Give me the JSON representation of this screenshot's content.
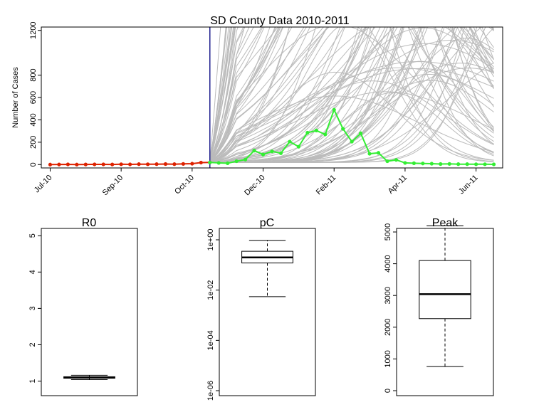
{
  "chart_data": [
    {
      "type": "line",
      "title": "SD County Data 2010-2011",
      "xlabel": "",
      "ylabel": "Number of Cases",
      "ylim": [
        -30,
        1230
      ],
      "y_ticks": [
        0,
        200,
        400,
        600,
        800,
        1200
      ],
      "x_tick_labels": [
        "Jul-10",
        "Sep-10",
        "Oct-10",
        "Dec-10",
        "Feb-11",
        "Apr-11",
        "Jun-11"
      ],
      "x_tick_weeks": [
        0,
        8,
        16,
        24,
        32,
        40,
        48
      ],
      "vertical_line_week": 18,
      "vertical_line_color": "#1f1f8f",
      "grid": false,
      "series": [
        {
          "color": "#dd2200",
          "weeks": [
            0,
            1,
            2,
            3,
            4,
            5,
            6,
            7,
            8,
            9,
            10,
            11,
            12,
            13,
            14,
            15,
            16,
            17,
            18
          ],
          "values": [
            0,
            1,
            2,
            0,
            1,
            2,
            2,
            1,
            3,
            2,
            4,
            3,
            4,
            5,
            4,
            6,
            8,
            18,
            19
          ]
        },
        {
          "color": "#33ee33",
          "weeks": [
            18,
            19,
            20,
            21,
            22,
            23,
            24,
            25,
            26,
            27,
            28,
            29,
            30,
            31,
            32,
            33,
            34,
            35,
            36,
            37,
            38,
            39,
            40,
            41,
            42,
            43,
            44,
            45,
            46,
            47,
            48,
            49,
            50
          ],
          "values": [
            19,
            15,
            12,
            30,
            45,
            125,
            90,
            118,
            102,
            205,
            160,
            285,
            305,
            270,
            490,
            320,
            205,
            280,
            97,
            105,
            30,
            42,
            15,
            12,
            10,
            8,
            5,
            6,
            4,
            4,
            3,
            3,
            2
          ]
        }
      ],
      "projection_color": "#bbbbbb"
    },
    {
      "type": "box",
      "title": "R0",
      "y_ticks": [
        1,
        2,
        3,
        4,
        5
      ],
      "ylim": [
        0.6,
        5.2
      ],
      "box": {
        "whisker_low": 1.04,
        "q1": 1.08,
        "median": 1.1,
        "q3": 1.12,
        "whisker_high": 1.16
      }
    },
    {
      "type": "box",
      "title": "pC",
      "log_scale": true,
      "y_tick_labels": [
        "1e+00",
        "1e-02",
        "1e-04",
        "1e-06"
      ],
      "y_tick_values": [
        1,
        0.01,
        0.0001,
        1e-06
      ],
      "box": {
        "whisker_low": 0.0055,
        "q1": 0.12,
        "median": 0.2,
        "q3": 0.35,
        "whisker_high": 0.95
      }
    },
    {
      "type": "box",
      "title": "Peak",
      "y_ticks": [
        0,
        1000,
        2000,
        3000,
        4000,
        5000
      ],
      "ylim": [
        -50,
        5200
      ],
      "box": {
        "whisker_low": 760,
        "q1": 2270,
        "median": 3040,
        "q3": 4100,
        "whisker_high": 5200
      }
    }
  ]
}
